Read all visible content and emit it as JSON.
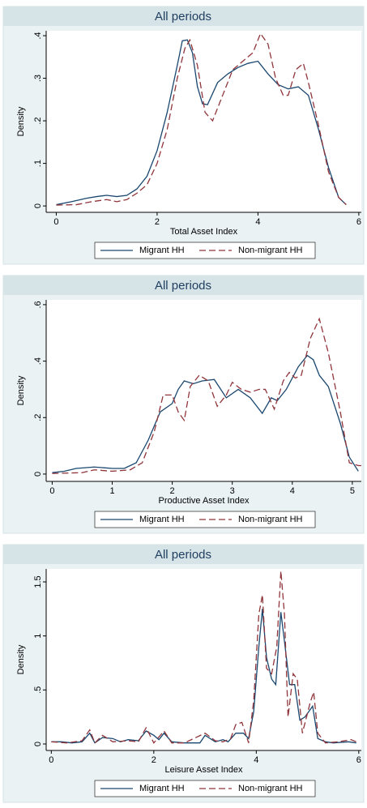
{
  "chart_data": [
    {
      "type": "line",
      "title": "All periods",
      "xlabel": "Total Asset Index",
      "ylabel": "Density",
      "grid": false,
      "xlim": [
        -0.2,
        6.05
      ],
      "xticks": [
        0,
        2,
        4,
        6
      ],
      "ylim": [
        -0.015,
        0.4115
      ],
      "yticks": [
        0,
        {
          "value": 0.1,
          "label": ".1"
        },
        {
          "value": 0.2,
          "label": ".2"
        },
        {
          "value": 0.3,
          "label": ".3"
        },
        {
          "value": 0.4,
          "label": ".4"
        }
      ],
      "series": [
        {
          "name": "Migrant HH",
          "color": "#1a476f",
          "dash": false,
          "x": [
            0,
            0.3,
            0.6,
            0.8,
            1.0,
            1.2,
            1.4,
            1.6,
            1.8,
            2.0,
            2.2,
            2.4,
            2.5,
            2.6,
            2.7,
            2.8,
            2.9,
            3.0,
            3.2,
            3.4,
            3.6,
            3.8,
            4.0,
            4.2,
            4.4,
            4.6,
            4.8,
            5.0,
            5.2,
            5.4,
            5.6,
            5.75
          ],
          "values": [
            0.003,
            0.01,
            0.018,
            0.022,
            0.025,
            0.022,
            0.025,
            0.04,
            0.07,
            0.13,
            0.22,
            0.33,
            0.388,
            0.39,
            0.36,
            0.28,
            0.24,
            0.238,
            0.29,
            0.31,
            0.325,
            0.335,
            0.34,
            0.31,
            0.285,
            0.275,
            0.28,
            0.26,
            0.18,
            0.09,
            0.02,
            0.003
          ]
        },
        {
          "name": "Non-migrant HH",
          "color": "#90353b",
          "dash": true,
          "x": [
            0,
            0.4,
            0.7,
            1.0,
            1.2,
            1.4,
            1.6,
            1.8,
            2.0,
            2.2,
            2.4,
            2.55,
            2.65,
            2.8,
            2.95,
            3.1,
            3.3,
            3.5,
            3.7,
            3.9,
            4.05,
            4.2,
            4.35,
            4.5,
            4.6,
            4.75,
            4.9,
            5.0,
            5.2,
            5.4,
            5.6,
            5.75
          ],
          "values": [
            0.002,
            0.003,
            0.01,
            0.015,
            0.01,
            0.015,
            0.03,
            0.05,
            0.1,
            0.18,
            0.3,
            0.37,
            0.39,
            0.33,
            0.22,
            0.2,
            0.26,
            0.32,
            0.34,
            0.36,
            0.405,
            0.38,
            0.3,
            0.26,
            0.26,
            0.32,
            0.335,
            0.29,
            0.19,
            0.08,
            0.02,
            0.003
          ]
        }
      ]
    },
    {
      "type": "line",
      "title": "All periods",
      "xlabel": "Productive Asset Index",
      "ylabel": "Density",
      "grid": false,
      "xlim": [
        -0.1,
        5.15
      ],
      "xticks": [
        0,
        1,
        2,
        3,
        4,
        5
      ],
      "ylim": [
        -0.026,
        0.617
      ],
      "yticks": [
        0,
        {
          "value": 0.2,
          "label": ".2"
        },
        {
          "value": 0.4,
          "label": ".4"
        },
        {
          "value": 0.6,
          "label": ".6"
        }
      ],
      "series": [
        {
          "name": "Migrant HH",
          "color": "#1a476f",
          "dash": false,
          "x": [
            0,
            0.2,
            0.4,
            0.7,
            1.0,
            1.2,
            1.4,
            1.6,
            1.8,
            2.0,
            2.1,
            2.2,
            2.35,
            2.5,
            2.7,
            2.9,
            3.1,
            3.3,
            3.5,
            3.65,
            3.75,
            3.9,
            4.1,
            4.25,
            4.35,
            4.45,
            4.6,
            4.8,
            4.95,
            5.1
          ],
          "values": [
            0.005,
            0.01,
            0.02,
            0.025,
            0.02,
            0.02,
            0.04,
            0.12,
            0.22,
            0.25,
            0.3,
            0.33,
            0.32,
            0.33,
            0.335,
            0.27,
            0.3,
            0.27,
            0.215,
            0.27,
            0.26,
            0.3,
            0.38,
            0.42,
            0.405,
            0.35,
            0.31,
            0.18,
            0.06,
            0.01
          ]
        },
        {
          "name": "Non-migrant HH",
          "color": "#90353b",
          "dash": true,
          "x": [
            0,
            0.5,
            0.7,
            1.0,
            1.3,
            1.5,
            1.7,
            1.85,
            2.0,
            2.1,
            2.2,
            2.3,
            2.45,
            2.6,
            2.75,
            2.9,
            3.0,
            3.15,
            3.3,
            3.45,
            3.55,
            3.7,
            3.85,
            3.95,
            4.05,
            4.15,
            4.3,
            4.45,
            4.6,
            4.8,
            4.95,
            5.1,
            5.15
          ],
          "values": [
            0.002,
            0.005,
            0.015,
            0.01,
            0.015,
            0.04,
            0.15,
            0.28,
            0.28,
            0.22,
            0.19,
            0.31,
            0.35,
            0.33,
            0.24,
            0.28,
            0.325,
            0.3,
            0.29,
            0.3,
            0.3,
            0.23,
            0.33,
            0.36,
            0.34,
            0.35,
            0.48,
            0.55,
            0.43,
            0.22,
            0.04,
            0.03,
            0.03
          ]
        }
      ]
    },
    {
      "type": "line",
      "title": "All periods",
      "xlabel": "Leisure Asset Index",
      "ylabel": "Density",
      "grid": false,
      "xlim": [
        -0.1,
        6.05
      ],
      "xticks": [
        0,
        2,
        4,
        6
      ],
      "ylim": [
        -0.06,
        1.62
      ],
      "yticks": [
        0,
        {
          "value": 0.5,
          "label": ".5"
        },
        1,
        1.5
      ],
      "series": [
        {
          "name": "Migrant HH",
          "color": "#1a476f",
          "dash": false,
          "x": [
            0,
            0.2,
            0.4,
            0.6,
            0.75,
            0.85,
            1.0,
            1.2,
            1.35,
            1.5,
            1.7,
            1.85,
            2.0,
            2.1,
            2.2,
            2.35,
            2.6,
            2.9,
            3.0,
            3.2,
            3.35,
            3.45,
            3.6,
            3.75,
            3.85,
            3.95,
            4.05,
            4.12,
            4.2,
            4.3,
            4.38,
            4.48,
            4.55,
            4.65,
            4.75,
            4.85,
            4.95,
            5.1,
            5.2,
            5.35,
            5.5,
            5.8,
            5.95
          ],
          "values": [
            0.02,
            0.02,
            0.01,
            0.02,
            0.1,
            0.01,
            0.06,
            0.05,
            0.02,
            0.04,
            0.03,
            0.12,
            0.08,
            0.04,
            0.1,
            0.02,
            0.01,
            0.01,
            0.08,
            0.02,
            0.04,
            0.02,
            0.1,
            0.1,
            0.05,
            0.3,
            0.9,
            1.25,
            0.8,
            0.6,
            0.55,
            1.22,
            0.95,
            0.55,
            0.55,
            0.22,
            0.25,
            0.35,
            0.05,
            0.02,
            0.01,
            0.02,
            0.01
          ]
        },
        {
          "name": "Non-migrant HH",
          "color": "#90353b",
          "dash": true,
          "x": [
            0,
            0.3,
            0.6,
            0.75,
            0.85,
            1.0,
            1.2,
            1.5,
            1.7,
            1.85,
            2.0,
            2.2,
            2.35,
            2.6,
            3.0,
            3.2,
            3.35,
            3.5,
            3.6,
            3.72,
            3.85,
            3.95,
            4.05,
            4.12,
            4.2,
            4.3,
            4.4,
            4.48,
            4.55,
            4.62,
            4.72,
            4.8,
            4.9,
            5.05,
            5.12,
            5.2,
            5.35,
            5.6,
            5.85,
            5.95
          ],
          "values": [
            0.02,
            0.01,
            0.03,
            0.13,
            0.01,
            0.08,
            0.02,
            0.03,
            0.02,
            0.15,
            0.01,
            0.12,
            0.01,
            0.01,
            0.1,
            0.03,
            0.02,
            0.05,
            0.18,
            0.2,
            0.01,
            0.4,
            1.2,
            1.38,
            0.7,
            0.65,
            0.9,
            1.6,
            1.2,
            0.25,
            0.65,
            0.6,
            0.1,
            0.38,
            0.48,
            0.1,
            0.01,
            0.02,
            0.04,
            0.02
          ]
        }
      ]
    }
  ]
}
